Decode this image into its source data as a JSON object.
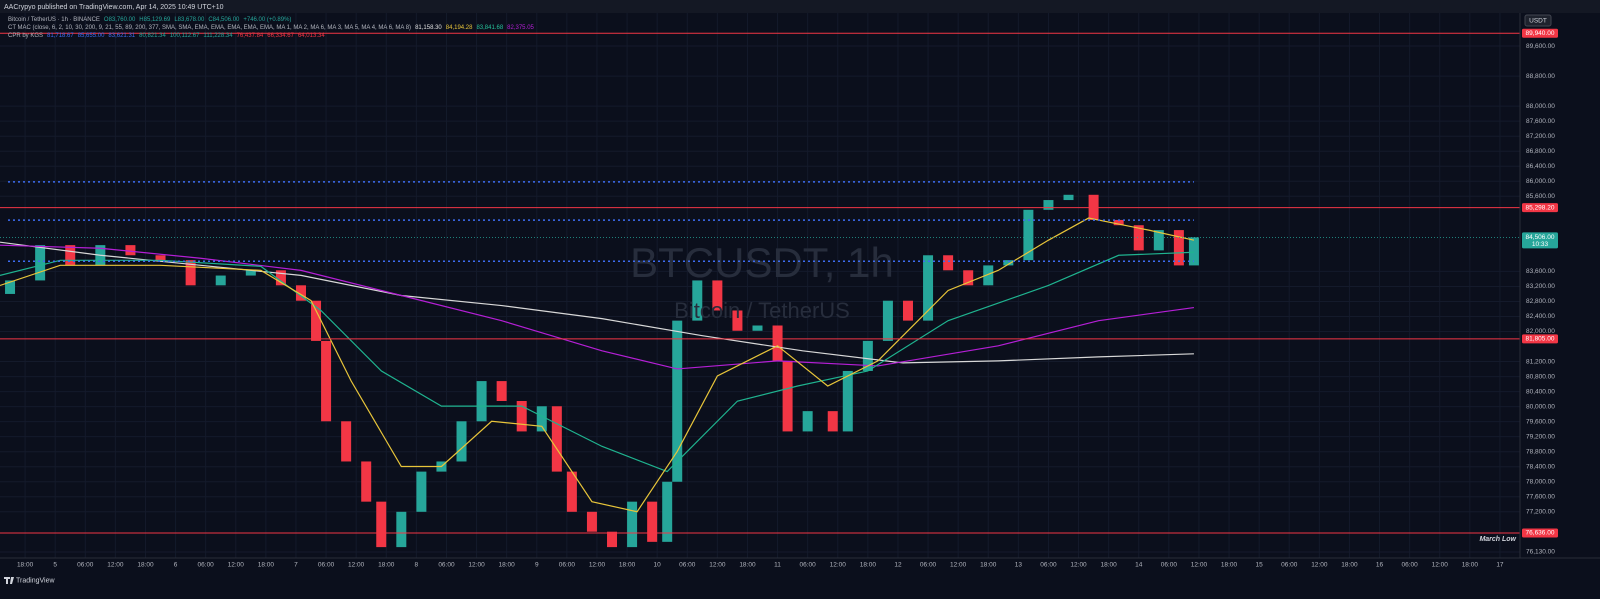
{
  "header": {
    "publisher": "AACrypyo published on TradingView.com, Apr 14, 2025 10:49 UTC+10",
    "currency_button": "USDT",
    "footer": "TradingView"
  },
  "legend": {
    "lines": [
      {
        "title": "Bitcoin / TetherUS · 1h · BINANCE",
        "items": [
          {
            "text": "O83,760.00",
            "color": "#26a69a"
          },
          {
            "text": "H85,129.69",
            "color": "#26a69a"
          },
          {
            "text": "L83,678.00",
            "color": "#26a69a"
          },
          {
            "text": "C84,506.00",
            "color": "#26a69a"
          },
          {
            "text": "+746.00 (+0.89%)",
            "color": "#26a69a"
          }
        ]
      },
      {
        "title": "CT MAC (close, 6, 2, 10, 30, 200, 9, 21, 55, 89, 200, 377, SMA, SMA, EMA, EMA, EMA, EMA, EMA, MA 1, MA 2, MA 6, MA 3, MA 5, MA 4, MA 6, MA 8)",
        "items": [
          {
            "text": "81,158.30",
            "color": "#e0e0e0"
          },
          {
            "text": "84,194.28",
            "color": "#e8c53a"
          },
          {
            "text": "83,841.68",
            "color": "#26c29a"
          },
          {
            "text": "82,375.05",
            "color": "#b51fd6"
          }
        ]
      },
      {
        "title": "CPR by KGS",
        "items": [
          {
            "text": "81,718.67",
            "color": "#3d6df2"
          },
          {
            "text": "85,655.00",
            "color": "#3d6df2"
          },
          {
            "text": "83,621.31",
            "color": "#3d6df2"
          },
          {
            "text": "80,821.34",
            "color": "#26a69a"
          },
          {
            "text": "100,112.67",
            "color": "#26a69a"
          },
          {
            "text": "111,228.34",
            "color": "#26a69a"
          },
          {
            "text": "76,437.84",
            "color": "#f23645"
          },
          {
            "text": "66,334.67",
            "color": "#f23645"
          },
          {
            "text": "64,013.34",
            "color": "#f23645"
          }
        ]
      }
    ]
  },
  "chart_data": {
    "type": "candlestick",
    "watermark": "BTCUSDT, 1h",
    "watermark_sub": "Bitcoin / TetherUS",
    "up_color": "#26a69a",
    "down_color": "#f23645",
    "grid": true,
    "xlim": [
      -5,
      298
    ],
    "ylim": [
      75970,
      90480
    ],
    "x": [
      -3,
      3,
      9,
      15,
      21,
      27,
      33,
      39,
      45,
      51,
      55,
      58,
      60,
      64,
      68,
      71,
      75,
      79,
      83,
      87,
      91,
      95,
      99,
      103,
      106,
      109,
      113,
      117,
      121,
      125,
      128,
      130,
      134,
      138,
      142,
      146,
      150,
      152,
      156,
      161,
      164,
      168,
      172,
      176,
      180,
      184,
      188,
      192,
      196,
      200,
      204,
      208,
      213,
      218,
      222,
      226,
      230,
      233
    ],
    "open": [
      83000,
      83360,
      84300,
      83760,
      84300,
      84030,
      83900,
      83230,
      83490,
      83630,
      83230,
      82820,
      81750,
      79610,
      78540,
      77470,
      76260,
      77200,
      78270,
      78540,
      79610,
      80680,
      80150,
      79340,
      80010,
      78270,
      77200,
      76670,
      76260,
      77470,
      76400,
      78000,
      82290,
      83360,
      82560,
      82020,
      82160,
      81220,
      79340,
      79880,
      79340,
      80950,
      81750,
      82820,
      82290,
      84030,
      83630,
      83230,
      83760,
      83900,
      85240,
      85500,
      85640,
      84970,
      84830,
      84160,
      84700,
      83760
    ],
    "close": [
      83360,
      84300,
      83760,
      84300,
      84030,
      83900,
      83230,
      83490,
      83630,
      83230,
      82820,
      81750,
      79610,
      78540,
      77470,
      76260,
      77200,
      78270,
      78540,
      79610,
      80680,
      80150,
      79340,
      80010,
      78270,
      77200,
      76670,
      76260,
      77470,
      76400,
      78000,
      82290,
      83360,
      82560,
      82020,
      82160,
      81220,
      79340,
      79880,
      79340,
      80950,
      81750,
      82820,
      82290,
      84030,
      83630,
      83230,
      83760,
      83900,
      85240,
      85500,
      85640,
      84970,
      84830,
      84160,
      84700,
      83760,
      84506
    ],
    "series": [
      {
        "color": "#d8d8d8",
        "x": [
          -5,
          15,
          35,
          55,
          75,
          95,
          115,
          135,
          155,
          175,
          194,
          214,
          233
        ],
        "values": [
          84378,
          84030,
          83762,
          83494,
          82959,
          82691,
          82343,
          81888,
          81486,
          81164,
          81218,
          81325,
          81406
        ]
      },
      {
        "color": "#b51fd6",
        "x": [
          -5,
          15,
          35,
          55,
          75,
          95,
          115,
          130,
          150,
          170,
          194,
          214,
          233
        ],
        "values": [
          84298,
          84217,
          83950,
          83628,
          82959,
          82289,
          81486,
          81004,
          81218,
          81084,
          81620,
          82289,
          82637
        ]
      },
      {
        "color": "#1fb38f",
        "x": [
          -5,
          7,
          27,
          47,
          59,
          71,
          83,
          99,
          115,
          128,
          142,
          154,
          168,
          184,
          204,
          218,
          233
        ],
        "values": [
          83494,
          83896,
          83896,
          83735,
          82557,
          80950,
          80013,
          80013,
          78942,
          78272,
          80147,
          80549,
          80950,
          82289,
          83226,
          84030,
          84110
        ]
      },
      {
        "color": "#e8c53a",
        "x": [
          -5,
          7,
          27,
          47,
          57,
          65,
          75,
          83,
          93,
          103,
          113,
          122,
          130,
          138,
          150,
          160,
          170,
          184,
          194,
          204,
          212,
          224,
          233
        ],
        "values": [
          83226,
          83762,
          83762,
          83628,
          82824,
          80682,
          78406,
          78406,
          79611,
          79477,
          77469,
          77201,
          78808,
          80816,
          81620,
          80549,
          81218,
          83092,
          83628,
          84432,
          85021,
          84699,
          84432
        ]
      }
    ],
    "levels": [
      {
        "value": 89940,
        "label": "89,940.00",
        "color": "#f23645"
      },
      {
        "value": 85298.2,
        "label": "85,298.20",
        "color": "#f23645"
      },
      {
        "value": 81805,
        "label": "81,805.00",
        "color": "#f23645"
      },
      {
        "value": 76636,
        "label": "76,636.00",
        "color": "#f23645",
        "note": "March Low"
      }
    ],
    "dotted_levels": [
      85985,
      84965,
      83870
    ],
    "dotted_color": "#3d6df2",
    "last_price": {
      "value": 84506,
      "label": "84,506.00",
      "countdown": "10:33"
    },
    "yticks": [
      {
        "value": 89600,
        "label": "89,600.00"
      },
      {
        "value": 88800,
        "label": "88,800.00"
      },
      {
        "value": 88000,
        "label": "88,000.00"
      },
      {
        "value": 87600,
        "label": "87,600.00"
      },
      {
        "value": 87200,
        "label": "87,200.00"
      },
      {
        "value": 86800,
        "label": "86,800.00"
      },
      {
        "value": 86400,
        "label": "86,400.00"
      },
      {
        "value": 86000,
        "label": "86,000.00"
      },
      {
        "value": 85600,
        "label": "85,600.00"
      },
      {
        "value": 83600,
        "label": "83,600.00"
      },
      {
        "value": 83200,
        "label": "83,200.00"
      },
      {
        "value": 82800,
        "label": "82,800.00"
      },
      {
        "value": 82400,
        "label": "82,400.00"
      },
      {
        "value": 82000,
        "label": "82,000.00"
      },
      {
        "value": 81200,
        "label": "81,200.00"
      },
      {
        "value": 80800,
        "label": "80,800.00"
      },
      {
        "value": 80400,
        "label": "80,400.00"
      },
      {
        "value": 80000,
        "label": "80,000.00"
      },
      {
        "value": 79600,
        "label": "79,600.00"
      },
      {
        "value": 79200,
        "label": "79,200.00"
      },
      {
        "value": 78800,
        "label": "78,800.00"
      },
      {
        "value": 78400,
        "label": "78,400.00"
      },
      {
        "value": 78000,
        "label": "78,000.00"
      },
      {
        "value": 77600,
        "label": "77,600.00"
      },
      {
        "value": 77200,
        "label": "77,200.00"
      },
      {
        "value": 76130,
        "label": "76,130.00"
      }
    ],
    "xticks": [
      {
        "value": 0,
        "label": "18:00"
      },
      {
        "value": 6,
        "label": "5"
      },
      {
        "value": 12,
        "label": "06:00"
      },
      {
        "value": 18,
        "label": "12:00"
      },
      {
        "value": 24,
        "label": "18:00"
      },
      {
        "value": 30,
        "label": "6"
      },
      {
        "value": 36,
        "label": "06:00"
      },
      {
        "value": 42,
        "label": "12:00"
      },
      {
        "value": 48,
        "label": "18:00"
      },
      {
        "value": 54,
        "label": "7"
      },
      {
        "value": 60,
        "label": "06:00"
      },
      {
        "value": 66,
        "label": "12:00"
      },
      {
        "value": 72,
        "label": "18:00"
      },
      {
        "value": 78,
        "label": "8"
      },
      {
        "value": 84,
        "label": "06:00"
      },
      {
        "value": 90,
        "label": "12:00"
      },
      {
        "value": 96,
        "label": "18:00"
      },
      {
        "value": 102,
        "label": "9"
      },
      {
        "value": 108,
        "label": "06:00"
      },
      {
        "value": 114,
        "label": "12:00"
      },
      {
        "value": 120,
        "label": "18:00"
      },
      {
        "value": 126,
        "label": "10"
      },
      {
        "value": 132,
        "label": "06:00"
      },
      {
        "value": 138,
        "label": "12:00"
      },
      {
        "value": 144,
        "label": "18:00"
      },
      {
        "value": 150,
        "label": "11"
      },
      {
        "value": 156,
        "label": "06:00"
      },
      {
        "value": 162,
        "label": "12:00"
      },
      {
        "value": 168,
        "label": "18:00"
      },
      {
        "value": 174,
        "label": "12"
      },
      {
        "value": 180,
        "label": "06:00"
      },
      {
        "value": 186,
        "label": "12:00"
      },
      {
        "value": 192,
        "label": "18:00"
      },
      {
        "value": 198,
        "label": "13"
      },
      {
        "value": 204,
        "label": "06:00"
      },
      {
        "value": 210,
        "label": "12:00"
      },
      {
        "value": 216,
        "label": "18:00"
      },
      {
        "value": 222,
        "label": "14"
      },
      {
        "value": 228,
        "label": "06:00"
      },
      {
        "value": 234,
        "label": "12:00"
      },
      {
        "value": 240,
        "label": "18:00"
      },
      {
        "value": 246,
        "label": "15"
      },
      {
        "value": 252,
        "label": "06:00"
      },
      {
        "value": 258,
        "label": "12:00"
      },
      {
        "value": 264,
        "label": "18:00"
      },
      {
        "value": 270,
        "label": "16"
      },
      {
        "value": 276,
        "label": "06:00"
      },
      {
        "value": 282,
        "label": "12:00"
      },
      {
        "value": 288,
        "label": "18:00"
      },
      {
        "value": 294,
        "label": "17"
      }
    ]
  }
}
